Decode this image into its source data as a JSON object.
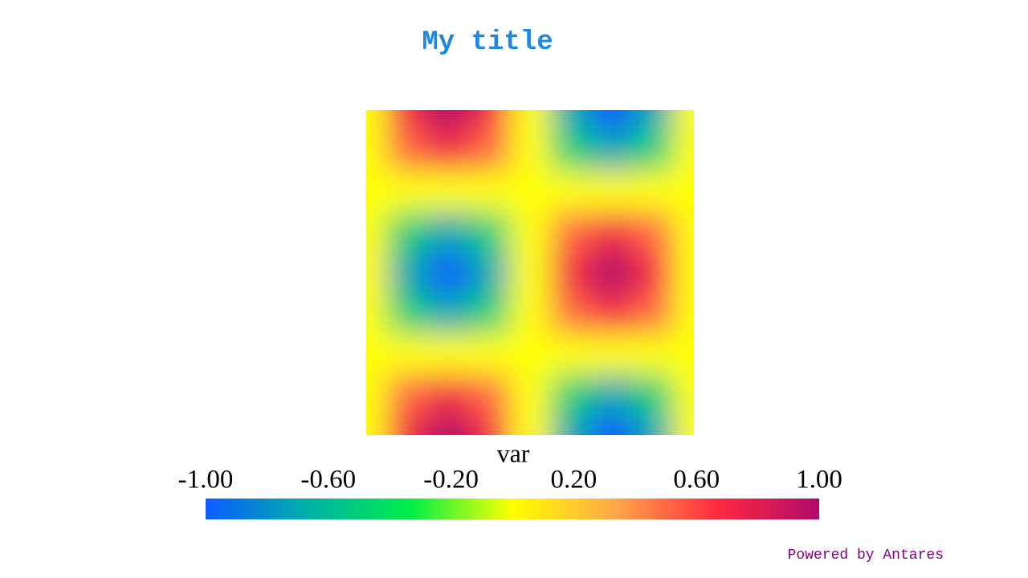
{
  "chart_data": {
    "type": "heatmap",
    "title": "My title",
    "title_color": "#1e88e5",
    "z": [
      [
        0,
        0.71,
        1,
        0.71,
        0,
        -0.71,
        -1,
        -0.71,
        0
      ],
      [
        0,
        0.5,
        0.71,
        0.5,
        0,
        -0.5,
        -0.71,
        -0.5,
        0
      ],
      [
        0,
        0,
        0,
        0,
        0,
        0,
        0,
        0,
        0
      ],
      [
        0,
        -0.5,
        -0.71,
        -0.5,
        0,
        0.5,
        0.71,
        0.5,
        0
      ],
      [
        0,
        -0.71,
        -1,
        -0.71,
        0,
        0.71,
        1,
        0.71,
        0
      ],
      [
        0,
        -0.5,
        -0.71,
        -0.5,
        0,
        0.5,
        0.71,
        0.5,
        0
      ],
      [
        0,
        0,
        0,
        0,
        0,
        0,
        0,
        0,
        0
      ],
      [
        0,
        0.5,
        0.71,
        0.5,
        0,
        -0.5,
        -0.71,
        -0.5,
        0
      ],
      [
        0,
        0.71,
        1,
        0.71,
        0,
        -0.71,
        -1,
        -0.71,
        0
      ]
    ],
    "colormap": [
      "#0a5cff",
      "#00b0a8",
      "#00ee48",
      "#ffff00",
      "#ffa848",
      "#ff2a40",
      "#b00a6a"
    ],
    "colorbar": {
      "title": "var",
      "clim": [
        -1,
        1
      ],
      "ticks": [
        {
          "value": -1,
          "label": "-1.00"
        },
        {
          "value": -0.6,
          "label": "-0.60"
        },
        {
          "value": -0.2,
          "label": "-0.20"
        },
        {
          "value": 0.2,
          "label": "0.20"
        },
        {
          "value": 0.6,
          "label": "0.60"
        },
        {
          "value": 1,
          "label": "1.00"
        }
      ]
    },
    "footer": "Powered by Antares",
    "footer_color": "#800080"
  }
}
